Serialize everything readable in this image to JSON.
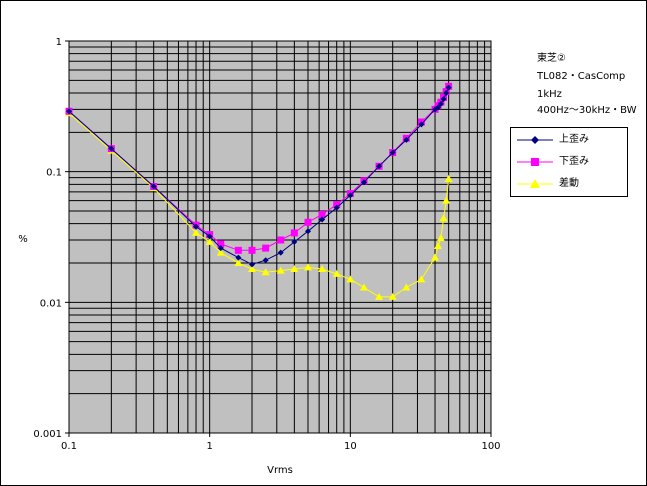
{
  "chart_data": {
    "type": "line",
    "xlabel": "Vrms",
    "ylabel": "%",
    "x_scale": "log",
    "y_scale": "log",
    "xlim": [
      0.1,
      100
    ],
    "ylim": [
      0.001,
      1
    ],
    "x_ticks": [
      "0.1",
      "1",
      "10",
      "100"
    ],
    "y_ticks": [
      "1",
      "0.1",
      "0.01",
      "0.001"
    ],
    "grid": true,
    "legend_position": "right",
    "plot_background": "#c0c0c0",
    "annotation": [
      "東芝②",
      "TL082・CasComp",
      "1kHz",
      "400Hz～30kHz・BW"
    ],
    "series": [
      {
        "name": "上歪み",
        "color": "#000080",
        "marker": "diamond",
        "points": [
          [
            0.1,
            0.29
          ],
          [
            0.2,
            0.15
          ],
          [
            0.4,
            0.077
          ],
          [
            0.8,
            0.038
          ],
          [
            1.0,
            0.032
          ],
          [
            1.2,
            0.026
          ],
          [
            1.6,
            0.022
          ],
          [
            2.0,
            0.0195
          ],
          [
            2.5,
            0.021
          ],
          [
            3.2,
            0.024
          ],
          [
            4.0,
            0.029
          ],
          [
            5.0,
            0.035
          ],
          [
            6.3,
            0.043
          ],
          [
            8.0,
            0.053
          ],
          [
            10,
            0.066
          ],
          [
            12.5,
            0.083
          ],
          [
            16,
            0.11
          ],
          [
            20,
            0.14
          ],
          [
            25,
            0.175
          ],
          [
            32,
            0.23
          ],
          [
            40,
            0.3
          ],
          [
            42,
            0.31
          ],
          [
            44,
            0.33
          ],
          [
            46,
            0.36
          ],
          [
            48,
            0.4
          ],
          [
            50,
            0.44
          ]
        ]
      },
      {
        "name": "下歪み",
        "color": "#ff00ff",
        "marker": "square",
        "points": [
          [
            0.1,
            0.29
          ],
          [
            0.2,
            0.15
          ],
          [
            0.4,
            0.077
          ],
          [
            0.8,
            0.039
          ],
          [
            1.0,
            0.033
          ],
          [
            1.2,
            0.028
          ],
          [
            1.6,
            0.025
          ],
          [
            2.0,
            0.025
          ],
          [
            2.5,
            0.026
          ],
          [
            3.2,
            0.03
          ],
          [
            4.0,
            0.034
          ],
          [
            5.0,
            0.041
          ],
          [
            6.3,
            0.047
          ],
          [
            8.0,
            0.056
          ],
          [
            10,
            0.068
          ],
          [
            12.5,
            0.085
          ],
          [
            16,
            0.11
          ],
          [
            20,
            0.14
          ],
          [
            25,
            0.18
          ],
          [
            32,
            0.24
          ],
          [
            40,
            0.3
          ],
          [
            42,
            0.32
          ],
          [
            44,
            0.34
          ],
          [
            46,
            0.37
          ],
          [
            48,
            0.41
          ],
          [
            50,
            0.45
          ]
        ]
      },
      {
        "name": "差動",
        "color": "#ffff00",
        "marker": "triangle",
        "points": [
          [
            0.1,
            0.28
          ],
          [
            0.2,
            0.145
          ],
          [
            0.4,
            0.075
          ],
          [
            0.8,
            0.034
          ],
          [
            1.0,
            0.029
          ],
          [
            1.2,
            0.024
          ],
          [
            1.6,
            0.02
          ],
          [
            2.0,
            0.018
          ],
          [
            2.5,
            0.017
          ],
          [
            3.2,
            0.0175
          ],
          [
            4.0,
            0.018
          ],
          [
            5.0,
            0.0185
          ],
          [
            6.3,
            0.018
          ],
          [
            8.0,
            0.0165
          ],
          [
            10,
            0.015
          ],
          [
            12.5,
            0.013
          ],
          [
            16,
            0.011
          ],
          [
            20,
            0.011
          ],
          [
            25,
            0.013
          ],
          [
            32,
            0.015
          ],
          [
            40,
            0.022
          ],
          [
            42,
            0.027
          ],
          [
            44,
            0.031
          ],
          [
            46,
            0.044
          ],
          [
            48,
            0.06
          ],
          [
            50,
            0.088
          ]
        ]
      }
    ]
  }
}
